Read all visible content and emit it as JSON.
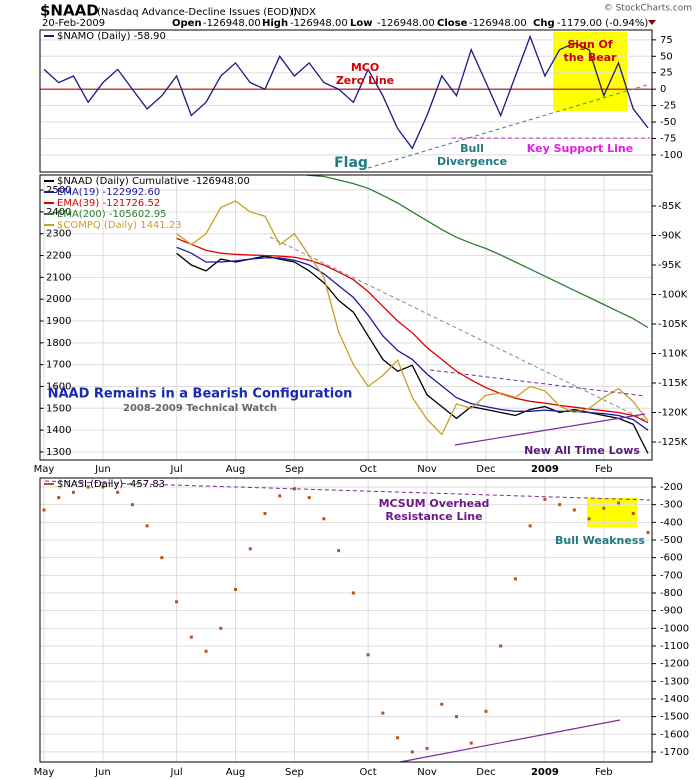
{
  "header": {
    "symbol": "$NAAD",
    "name": "(Nasdaq Advance-Decline Issues (EOD))",
    "exchange": "INDX",
    "watermark": "© StockCharts.com",
    "date": "20-Feb-2009",
    "open_label": "Open",
    "open": "-126948.00",
    "high_label": "High",
    "high": "-126948.00",
    "low_label": "Low",
    "low": "-126948.00",
    "close_label": "Close",
    "close": "-126948.00",
    "chg_label": "Chg",
    "chg": "-1179.00 (-0.94%)"
  },
  "chart_data": [
    {
      "type": "line",
      "ylim": [
        -126,
        90
      ],
      "yticks": [
        75,
        50,
        25,
        0,
        -25,
        -50,
        -75,
        -100
      ],
      "grid": true,
      "zero_line": true,
      "zero_line_color": "#cc0000",
      "series": [
        {
          "name": "$NAMO (Daily) -58.90",
          "color": "#1a1a80",
          "values": [
            30,
            10,
            20,
            -20,
            10,
            30,
            0,
            -30,
            -10,
            20,
            -40,
            -20,
            20,
            40,
            10,
            0,
            50,
            20,
            40,
            10,
            0,
            -20,
            30,
            -10,
            -60,
            -90,
            -40,
            20,
            -10,
            60,
            10,
            -40,
            20,
            80,
            20,
            60,
            70,
            60,
            -10,
            40,
            -30,
            -58.9
          ]
        }
      ],
      "annotations": [
        {
          "text": [
            "MCO",
            "Zero Line"
          ]
        },
        {
          "text": [
            "Sign Of",
            "the Bear"
          ]
        },
        {
          "text": [
            "Flag"
          ]
        },
        {
          "text": [
            "Bull",
            "Divergence"
          ]
        },
        {
          "text": [
            "Key Support Line"
          ]
        }
      ]
    },
    {
      "type": "line",
      "categories": [
        "May",
        null,
        null,
        null,
        "Jun",
        null,
        null,
        null,
        null,
        "Jul",
        null,
        null,
        null,
        "Aug",
        null,
        null,
        null,
        "Sep",
        null,
        null,
        null,
        null,
        "Oct",
        null,
        null,
        null,
        "Nov",
        null,
        null,
        null,
        "Dec",
        null,
        null,
        null,
        "2009",
        null,
        null,
        null,
        "Feb",
        null,
        null,
        null
      ],
      "ylim": [
        1263,
        2569
      ],
      "yticks": [
        2500,
        2400,
        2300,
        2200,
        2100,
        2000,
        1900,
        1800,
        1700,
        1600,
        1500,
        1400,
        1300
      ],
      "y2lim": [
        -128050,
        -79750
      ],
      "y2ticks": [
        {
          "value": -85000,
          "label": "-85K"
        },
        {
          "value": -90000,
          "label": "-90K"
        },
        {
          "value": -95000,
          "label": "-95K"
        },
        {
          "value": -100000,
          "label": "-100K"
        },
        {
          "value": -105000,
          "label": "-105K"
        },
        {
          "value": -110000,
          "label": "-110K"
        },
        {
          "value": -115000,
          "label": "-115K"
        },
        {
          "value": -120000,
          "label": "-120K"
        },
        {
          "value": -125000,
          "label": "-125K"
        }
      ],
      "grid": true,
      "series": [
        {
          "name": "$NAAD (Daily) Cumulative -126948.00",
          "color": "#000000",
          "axis": "y2",
          "values": [
            null,
            null,
            null,
            null,
            null,
            null,
            null,
            null,
            null,
            -93000,
            -95000,
            -96000,
            -94000,
            -94500,
            -94000,
            -93500,
            -94000,
            -94500,
            -96000,
            -98000,
            -101000,
            -103000,
            -107000,
            -111000,
            -113000,
            -112000,
            -117000,
            -119000,
            -121000,
            -119000,
            -119500,
            -120000,
            -120500,
            -119500,
            -119000,
            -120000,
            -119500,
            -120000,
            -120500,
            -121000,
            -122000,
            -126948
          ]
        },
        {
          "name": "EMA(19) -122992.60",
          "color": "#1a1aa0",
          "axis": "y2",
          "values": [
            null,
            null,
            null,
            null,
            null,
            null,
            null,
            null,
            null,
            -92000,
            -93000,
            -94500,
            -94500,
            -94300,
            -94000,
            -93800,
            -93800,
            -94200,
            -95000,
            -96500,
            -98500,
            -100500,
            -103500,
            -107000,
            -109500,
            -111000,
            -113500,
            -115500,
            -117500,
            -118500,
            -119000,
            -119500,
            -119800,
            -119800,
            -119600,
            -119800,
            -119800,
            -120000,
            -120200,
            -120500,
            -121200,
            -122992.6
          ]
        },
        {
          "name": "EMA(39) -121726.52",
          "color": "#dd0000",
          "axis": "y2",
          "values": [
            null,
            null,
            null,
            null,
            null,
            null,
            null,
            null,
            null,
            -90500,
            -91500,
            -92500,
            -93000,
            -93200,
            -93300,
            -93400,
            -93500,
            -93700,
            -94200,
            -95000,
            -96200,
            -97500,
            -99500,
            -102000,
            -104500,
            -106500,
            -109000,
            -111000,
            -113000,
            -114500,
            -115800,
            -116800,
            -117600,
            -118100,
            -118400,
            -118800,
            -119100,
            -119400,
            -119700,
            -120000,
            -120500,
            -121726.52
          ]
        },
        {
          "name": "EMA(200) -105602.95",
          "color": "#2e7d32",
          "axis": "y2",
          "values": [
            null,
            null,
            null,
            null,
            null,
            null,
            null,
            null,
            null,
            null,
            null,
            null,
            null,
            null,
            null,
            null,
            null,
            -79500,
            -79800,
            -80000,
            -80600,
            -81200,
            -82000,
            -83200,
            -84500,
            -86000,
            -87500,
            -89000,
            -90300,
            -91300,
            -92200,
            -93300,
            -94500,
            -95700,
            -96900,
            -98100,
            -99300,
            -100500,
            -101700,
            -102900,
            -104100,
            -105602.95
          ]
        },
        {
          "name": "$COMPQ (Daily) 1441.23",
          "color": "#c8a020",
          "values": [
            null,
            null,
            null,
            null,
            null,
            null,
            null,
            null,
            null,
            2300,
            2250,
            2300,
            2420,
            2450,
            2400,
            2380,
            2250,
            2300,
            2200,
            2100,
            1850,
            1700,
            1600,
            1650,
            1720,
            1550,
            1450,
            1380,
            1520,
            1500,
            1560,
            1570,
            1550,
            1600,
            1580,
            1510,
            1480,
            1500,
            1550,
            1590,
            1530,
            1441.23
          ]
        }
      ],
      "annotations": [
        {
          "text": [
            "NAAD Remains in a Bearish Configuration"
          ]
        },
        {
          "text": [
            "2008-2009 Technical Watch"
          ]
        },
        {
          "text": [
            "New All Time Lows"
          ]
        }
      ]
    },
    {
      "type": "dot",
      "categories": [
        "May",
        null,
        null,
        null,
        "Jun",
        null,
        null,
        null,
        null,
        "Jul",
        null,
        null,
        null,
        "Aug",
        null,
        null,
        null,
        "Sep",
        null,
        null,
        null,
        null,
        "Oct",
        null,
        null,
        null,
        "Nov",
        null,
        null,
        null,
        "Dec",
        null,
        null,
        null,
        "2009",
        null,
        null,
        null,
        "Feb",
        null,
        null,
        null
      ],
      "ylim": [
        -1757,
        -149
      ],
      "yticks": [
        -200,
        -300,
        -400,
        -500,
        -600,
        -700,
        -800,
        -900,
        -1000,
        -1100,
        -1200,
        -1300,
        -1400,
        -1500,
        -1600,
        -1700
      ],
      "grid": true,
      "series": [
        {
          "name": "$NASI (Daily) -457.83",
          "color": "#b5541c",
          "values": [
            -330,
            -260,
            -230,
            -200,
            -200,
            -230,
            -300,
            -420,
            -600,
            -850,
            -1050,
            -1130,
            -1000,
            -780,
            -550,
            -350,
            -250,
            -210,
            -260,
            -380,
            -560,
            -800,
            -1150,
            -1480,
            -1620,
            -1700,
            -1680,
            -1430,
            -1500,
            -1650,
            -1470,
            -1100,
            -720,
            -420,
            -270,
            -300,
            -330,
            -380,
            -320,
            -290,
            -350,
            -457.83
          ]
        }
      ],
      "annotations": [
        {
          "text": [
            "MCSUM Overhead",
            "Resistance Line"
          ]
        },
        {
          "text": [
            "Bull Weakness"
          ]
        }
      ]
    }
  ]
}
